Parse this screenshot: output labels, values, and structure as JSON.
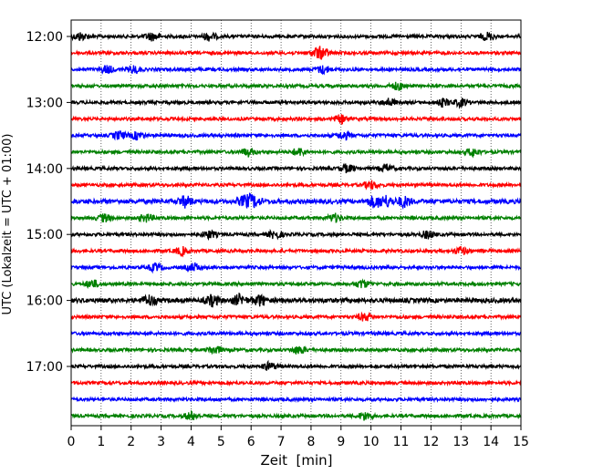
{
  "chart_data": {
    "type": "line",
    "title": "",
    "xlabel": "Zeit  [min]",
    "ylabel": "UTC (Lokalzeit = UTC + 01:00)",
    "xlim": [
      0,
      15
    ],
    "x_ticks": [
      "0",
      "1",
      "2",
      "3",
      "4",
      "5",
      "6",
      "7",
      "8",
      "9",
      "10",
      "11",
      "12",
      "13",
      "14",
      "15"
    ],
    "y_ticks": [
      "12:00",
      "13:00",
      "14:00",
      "15:00",
      "16:00",
      "17:00"
    ],
    "grid": "vertical dotted lines at each minute",
    "trace_interval_min": 15,
    "trace_colors": [
      "#000000",
      "#ff0000",
      "#0000ff",
      "#008000"
    ],
    "series": [
      {
        "start": "12:00",
        "color": "#000000",
        "amplitude": "low",
        "events_min": [
          0.3,
          2.7,
          4.6,
          13.9
        ]
      },
      {
        "start": "12:15",
        "color": "#ff0000",
        "amplitude": "low",
        "events_min": [
          8.2,
          8.4
        ]
      },
      {
        "start": "12:30",
        "color": "#0000ff",
        "amplitude": "low",
        "events_min": [
          1.2,
          2.1,
          8.4
        ]
      },
      {
        "start": "12:45",
        "color": "#008000",
        "amplitude": "low",
        "events_min": [
          10.9
        ]
      },
      {
        "start": "13:00",
        "color": "#000000",
        "amplitude": "low",
        "events_min": [
          10.6,
          12.4,
          13.0
        ]
      },
      {
        "start": "13:15",
        "color": "#ff0000",
        "amplitude": "low",
        "events_min": [
          9.0
        ]
      },
      {
        "start": "13:30",
        "color": "#0000ff",
        "amplitude": "low",
        "events_min": [
          1.6,
          2.2,
          9.1
        ]
      },
      {
        "start": "13:45",
        "color": "#008000",
        "amplitude": "low",
        "events_min": [
          5.9,
          7.6,
          13.4
        ]
      },
      {
        "start": "14:00",
        "color": "#000000",
        "amplitude": "low",
        "events_min": [
          9.2,
          10.5
        ]
      },
      {
        "start": "14:15",
        "color": "#ff0000",
        "amplitude": "low",
        "events_min": [
          10.0
        ]
      },
      {
        "start": "14:30",
        "color": "#0000ff",
        "amplitude": "high",
        "events_min": [
          3.8,
          5.8,
          6.1,
          10.1,
          10.5,
          11.1
        ]
      },
      {
        "start": "14:45",
        "color": "#008000",
        "amplitude": "low",
        "events_min": [
          1.1,
          2.5,
          8.8
        ]
      },
      {
        "start": "15:00",
        "color": "#000000",
        "amplitude": "low",
        "events_min": [
          4.6,
          6.8,
          11.9
        ]
      },
      {
        "start": "15:15",
        "color": "#ff0000",
        "amplitude": "low",
        "events_min": [
          3.7,
          13.0
        ]
      },
      {
        "start": "15:30",
        "color": "#0000ff",
        "amplitude": "low",
        "events_min": [
          2.8,
          4.1
        ]
      },
      {
        "start": "15:45",
        "color": "#008000",
        "amplitude": "low",
        "events_min": [
          0.7,
          9.7
        ]
      },
      {
        "start": "16:00",
        "color": "#000000",
        "amplitude": "high",
        "events_min": [
          2.6,
          4.7,
          5.6,
          6.3
        ]
      },
      {
        "start": "16:15",
        "color": "#ff0000",
        "amplitude": "low",
        "events_min": [
          9.8
        ]
      },
      {
        "start": "16:30",
        "color": "#0000ff",
        "amplitude": "low",
        "events_min": []
      },
      {
        "start": "16:45",
        "color": "#008000",
        "amplitude": "low",
        "events_min": [
          4.8,
          7.6
        ]
      },
      {
        "start": "17:00",
        "color": "#000000",
        "amplitude": "low",
        "events_min": [
          6.6
        ]
      },
      {
        "start": "17:15",
        "color": "#ff0000",
        "amplitude": "low",
        "events_min": []
      },
      {
        "start": "17:30",
        "color": "#0000ff",
        "amplitude": "low",
        "events_min": []
      },
      {
        "start": "17:45",
        "color": "#008000",
        "amplitude": "low",
        "events_min": [
          4.0,
          9.8
        ]
      }
    ]
  }
}
